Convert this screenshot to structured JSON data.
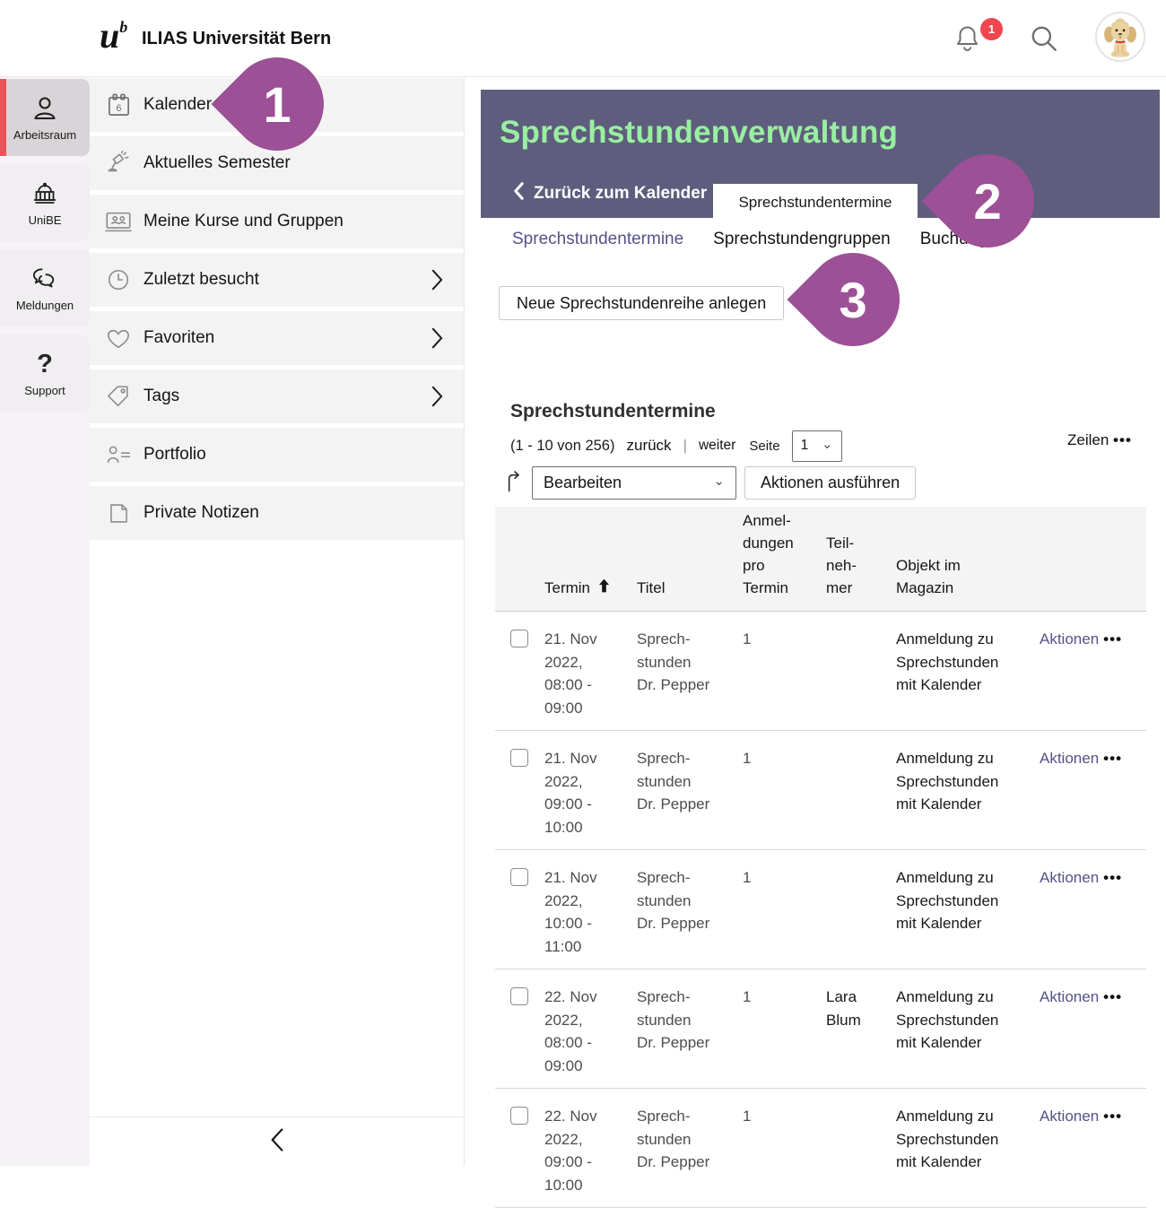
{
  "topbar": {
    "logo_u": "u",
    "logo_sup": "b",
    "brand": "ILIAS Universität Bern",
    "notifications_badge": "1"
  },
  "rail": {
    "items": [
      {
        "label": "Arbeitsraum",
        "icon": "user-icon",
        "active": true
      },
      {
        "label": "UniBE",
        "icon": "university-icon",
        "active": false
      },
      {
        "label": "Meldungen",
        "icon": "messages-icon",
        "active": false
      },
      {
        "label": "Support",
        "icon": "help-icon",
        "active": false
      }
    ]
  },
  "menu": {
    "items": [
      {
        "label": "Kalender",
        "icon": "calendar-icon",
        "chevron": false
      },
      {
        "label": "Aktuelles Semester",
        "icon": "lamp-icon",
        "chevron": false
      },
      {
        "label": "Meine Kurse und Gruppen",
        "icon": "courses-icon",
        "chevron": false
      },
      {
        "label": "Zuletzt besucht",
        "icon": "clock-icon",
        "chevron": true
      },
      {
        "label": "Favoriten",
        "icon": "heart-icon",
        "chevron": true
      },
      {
        "label": "Tags",
        "icon": "tag-icon",
        "chevron": true
      },
      {
        "label": "Portfolio",
        "icon": "portfolio-icon",
        "chevron": false
      },
      {
        "label": "Private Notizen",
        "icon": "notes-icon",
        "chevron": false
      }
    ]
  },
  "page_header": {
    "title": "Sprechstundenverwaltung",
    "back_label": "Zurück zum Kalender",
    "header_tab_label": "Sprechstundentermine"
  },
  "tabs": [
    {
      "label": "Sprechstundentermine",
      "active": true
    },
    {
      "label": "Sprechstundengruppen",
      "active": false
    },
    {
      "label": "Buchungen",
      "active": false
    }
  ],
  "toolbar": {
    "new_button_label": "Neue Sprechstundenreihe anlegen"
  },
  "table": {
    "title": "Sprechstundentermine",
    "pagination": {
      "range": "(1 - 10 von 256)",
      "prev": "zurück",
      "divider": "|",
      "next": "weiter",
      "page_label": "Seite",
      "page_value": "1",
      "rows_label": "Zeilen",
      "rows_menu": "•••"
    },
    "bulk": {
      "select_value": "Bearbeiten",
      "execute_label": "Aktionen ausführen"
    },
    "columns": {
      "termin": "Termin",
      "titel": "Titel",
      "anmeldungen": "Anmel-\ndungen\npro\nTermin",
      "teilnehmer": "Teil-\nneh-\nmer",
      "objekt": "Objekt im\nMagazin"
    },
    "row_action_label": "Aktionen",
    "row_action_menu": "•••",
    "rows": [
      {
        "termin": "21. Nov\n2022,\n08:00 -\n09:00",
        "titel": "Sprech-\nstunden\nDr. Pepper",
        "anmeldungen": "1",
        "teilnehmer": "",
        "objekt": "Anmeldung zu\nSprechstunden\nmit Kalender"
      },
      {
        "termin": "21. Nov\n2022,\n09:00 -\n10:00",
        "titel": "Sprech-\nstunden\nDr. Pepper",
        "anmeldungen": "1",
        "teilnehmer": "",
        "objekt": "Anmeldung zu\nSprechstunden\nmit Kalender"
      },
      {
        "termin": "21. Nov\n2022,\n10:00 -\n11:00",
        "titel": "Sprech-\nstunden\nDr. Pepper",
        "anmeldungen": "1",
        "teilnehmer": "",
        "objekt": "Anmeldung zu\nSprechstunden\nmit Kalender"
      },
      {
        "termin": "22. Nov\n2022,\n08:00 -\n09:00",
        "titel": "Sprech-\nstunden\nDr. Pepper",
        "anmeldungen": "1",
        "teilnehmer": "Lara\nBlum",
        "objekt": "Anmeldung zu\nSprechstunden\nmit Kalender"
      },
      {
        "termin": "22. Nov\n2022,\n09:00 -\n10:00",
        "titel": "Sprech-\nstunden\nDr. Pepper",
        "anmeldungen": "1",
        "teilnehmer": "",
        "objekt": "Anmeldung zu\nSprechstunden\nmit Kalender"
      }
    ]
  },
  "annotations": {
    "pins": [
      {
        "number": "1"
      },
      {
        "number": "2"
      },
      {
        "number": "3"
      }
    ]
  },
  "colors": {
    "header_bg": "#5f5d7e",
    "header_title": "#99efa0",
    "pin": "#9c5095",
    "active_accent": "#e8555c",
    "badge": "#ef4650",
    "link": "#55528a"
  }
}
